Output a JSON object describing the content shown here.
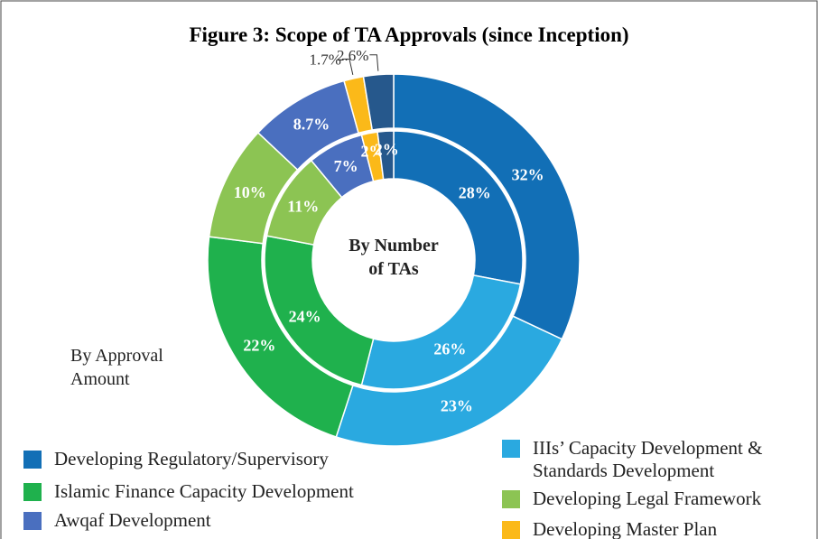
{
  "chart_data": {
    "type": "nested-donut",
    "title": "Figure 3: Scope of TA Approvals (since Inception)",
    "categories": [
      "Developing Regulatory/Supervisory",
      "IIIs’ Capacity Development & Standards Development",
      "Islamic Finance Capacity Development",
      "Developing Legal Framework",
      "Awqaf Development",
      "Developing Master Plan",
      null
    ],
    "colors": [
      "#126fb6",
      "#2aa9e0",
      "#1fb14d",
      "#8cc453",
      "#4a6fbf",
      "#fbb919",
      "#26588c"
    ],
    "series": [
      {
        "name": "By Approval Amount",
        "ring": "outer",
        "values": [
          32,
          23,
          22,
          10,
          8.7,
          1.7,
          2.6
        ],
        "value_labels": [
          "32%",
          "23%",
          "22%",
          "10%",
          "8.7%",
          "1.7%",
          "2.6%"
        ]
      },
      {
        "name": "By Number of TAs",
        "ring": "inner",
        "values": [
          28,
          26,
          24,
          11,
          7,
          2,
          2
        ],
        "value_labels": [
          "28%",
          "26%",
          "24%",
          "11%",
          "7%",
          "2%",
          "2%"
        ]
      }
    ]
  }
}
